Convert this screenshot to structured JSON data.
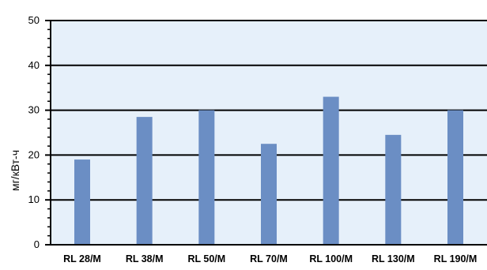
{
  "chart_data": {
    "type": "bar",
    "title": "",
    "xlabel": "",
    "ylabel": "мг/кВт-ч",
    "categories": [
      "RL 28/M",
      "RL 38/M",
      "RL 50/M",
      "RL 70/M",
      "RL 100/M",
      "RL 130/M",
      "RL 190/M"
    ],
    "values": [
      19,
      28.5,
      30,
      22.5,
      33,
      24.5,
      30
    ],
    "ylim": [
      0,
      50
    ],
    "yticks": [
      "0",
      "10",
      "20",
      "30",
      "40",
      "50"
    ],
    "grid": true,
    "legend": "none",
    "colors": {
      "bar": "#6b8ec4",
      "plot_background": "#e6f0fa",
      "gridline": "#000000",
      "axis": "#000000"
    }
  }
}
